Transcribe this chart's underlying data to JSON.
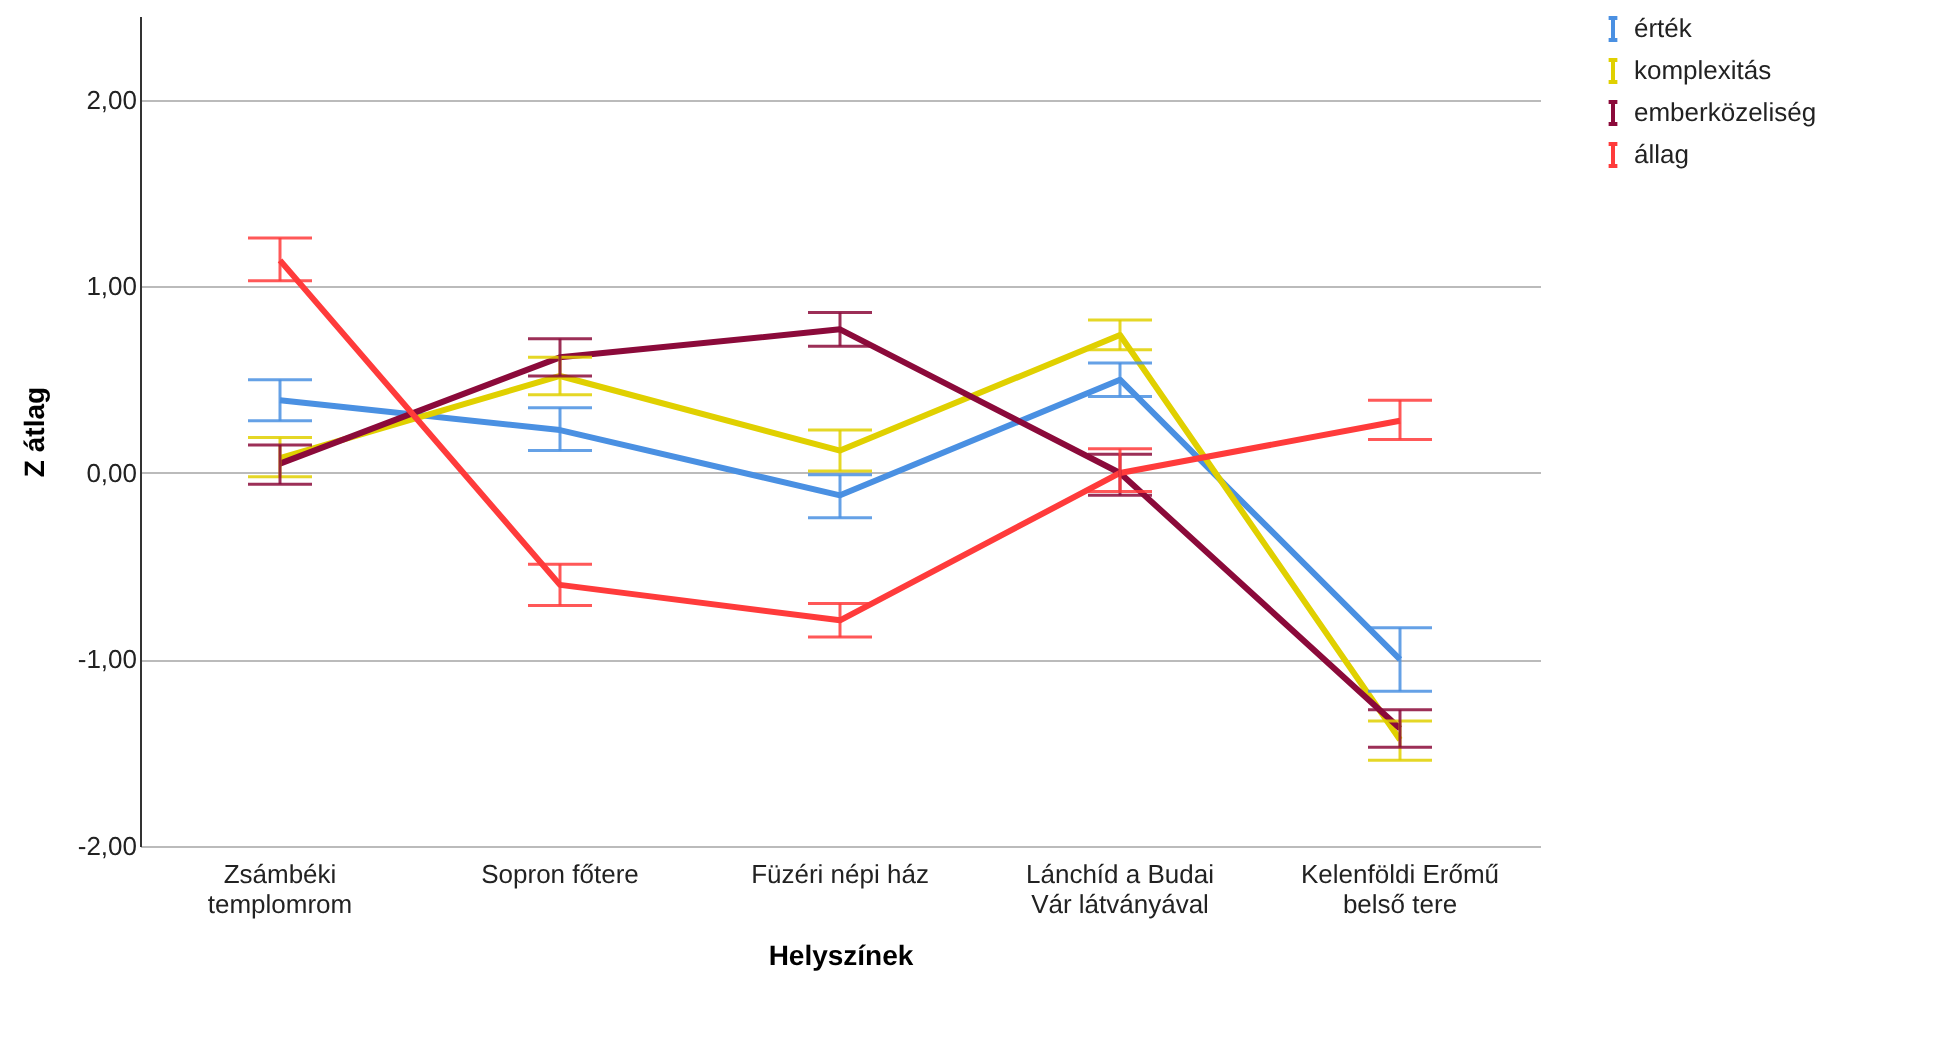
{
  "chart_data": {
    "type": "line",
    "xlabel": "Helyszínek",
    "ylabel": "Z átlag",
    "categories": [
      "Zsámbéki templomrom",
      "Sopron főtere",
      "Füzéri népi ház",
      "Lánchíd a Budai Vár látványával",
      "Kelenföldi Erőmű belső tere"
    ],
    "series": [
      {
        "name": "érték",
        "color": "#4a90e2",
        "values": [
          0.39,
          0.23,
          -0.12,
          0.5,
          -1.0
        ],
        "errors": [
          [
            0.28,
            0.5
          ],
          [
            0.12,
            0.35
          ],
          [
            -0.24,
            -0.01
          ],
          [
            0.41,
            0.59
          ],
          [
            -1.17,
            -0.83
          ]
        ]
      },
      {
        "name": "komplexitás",
        "color": "#e0d000",
        "values": [
          0.08,
          0.52,
          0.12,
          0.74,
          -1.43
        ],
        "errors": [
          [
            -0.02,
            0.19
          ],
          [
            0.42,
            0.62
          ],
          [
            0.01,
            0.23
          ],
          [
            0.66,
            0.82
          ],
          [
            -1.54,
            -1.33
          ]
        ]
      },
      {
        "name": "emberközeliség",
        "color": "#8b0a3a",
        "values": [
          0.05,
          0.62,
          0.77,
          0.0,
          -1.37
        ],
        "errors": [
          [
            -0.06,
            0.15
          ],
          [
            0.52,
            0.72
          ],
          [
            0.68,
            0.86
          ],
          [
            -0.12,
            0.1
          ],
          [
            -1.47,
            -1.27
          ]
        ]
      },
      {
        "name": "állag",
        "color": "#ff3b3b",
        "values": [
          1.14,
          -0.6,
          -0.79,
          0.0,
          0.28
        ],
        "errors": [
          [
            1.03,
            1.26
          ],
          [
            -0.71,
            -0.49
          ],
          [
            -0.88,
            -0.7
          ],
          [
            -0.1,
            0.13
          ],
          [
            0.18,
            0.39
          ]
        ]
      }
    ],
    "ylim": [
      -2,
      2.45
    ],
    "yticks": [
      {
        "value": -2,
        "label": "-2,00"
      },
      {
        "value": -1,
        "label": "-1,00"
      },
      {
        "value": 0,
        "label": "0,00"
      },
      {
        "value": 1,
        "label": "1,00"
      },
      {
        "value": 2,
        "label": "2,00"
      }
    ],
    "grid": "y",
    "legend": "right",
    "marker": "none",
    "line_style": "solid"
  }
}
